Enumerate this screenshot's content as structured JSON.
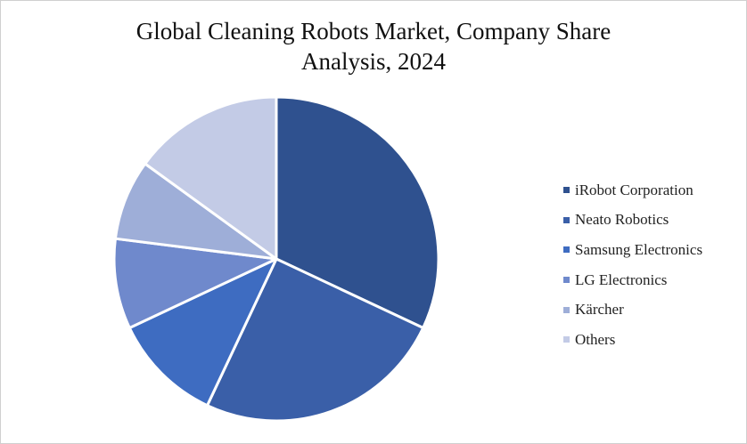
{
  "chart_data": {
    "type": "pie",
    "title_lines": [
      "Global Cleaning Robots Market, Company Share",
      "Analysis, 2024"
    ],
    "slices": [
      {
        "label": "iRobot Corporation",
        "value": 32,
        "color": "#2f518f"
      },
      {
        "label": "Neato Robotics",
        "value": 25,
        "color": "#3a5fa8"
      },
      {
        "label": "Samsung Electronics",
        "value": 11,
        "color": "#3e6cc1"
      },
      {
        "label": "LG Electronics",
        "value": 9,
        "color": "#6f89cc"
      },
      {
        "label": "Kärcher",
        "value": 8,
        "color": "#9eaed8"
      },
      {
        "label": "Others",
        "value": 15,
        "color": "#c3cbe6"
      }
    ],
    "start_angle": "12 o'clock",
    "direction": "clockwise",
    "legend_position": "right"
  }
}
